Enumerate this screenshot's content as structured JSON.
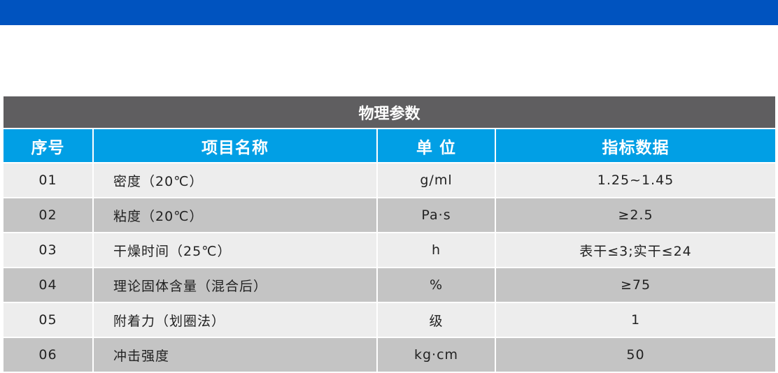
{
  "table": {
    "title": "物理参数",
    "headers": [
      "序号",
      "项目名称",
      "单 位",
      "指标数据"
    ],
    "rows": [
      {
        "no": "01",
        "name": "密度（20℃）",
        "unit": "g/ml",
        "value": "1.25~1.45"
      },
      {
        "no": "02",
        "name": "粘度（20℃）",
        "unit": "Pa·s",
        "value": "≥2.5"
      },
      {
        "no": "03",
        "name": "干燥时间（25℃）",
        "unit": "h",
        "value": "表干≤3;实干≤24"
      },
      {
        "no": "04",
        "name": "理论固体含量（混合后）",
        "unit": "%",
        "value": "≥75"
      },
      {
        "no": "05",
        "name": "附着力（划圈法）",
        "unit": "级",
        "value": "1"
      },
      {
        "no": "06",
        "name": "冲击强度",
        "unit": "kg·cm",
        "value": "50"
      }
    ]
  },
  "colors": {
    "top_bar": "#0053bf",
    "title_bg": "#5f5e60",
    "header_bg": "#019fe5",
    "row_light": "#ededed",
    "row_dark": "#c4c4c4"
  }
}
